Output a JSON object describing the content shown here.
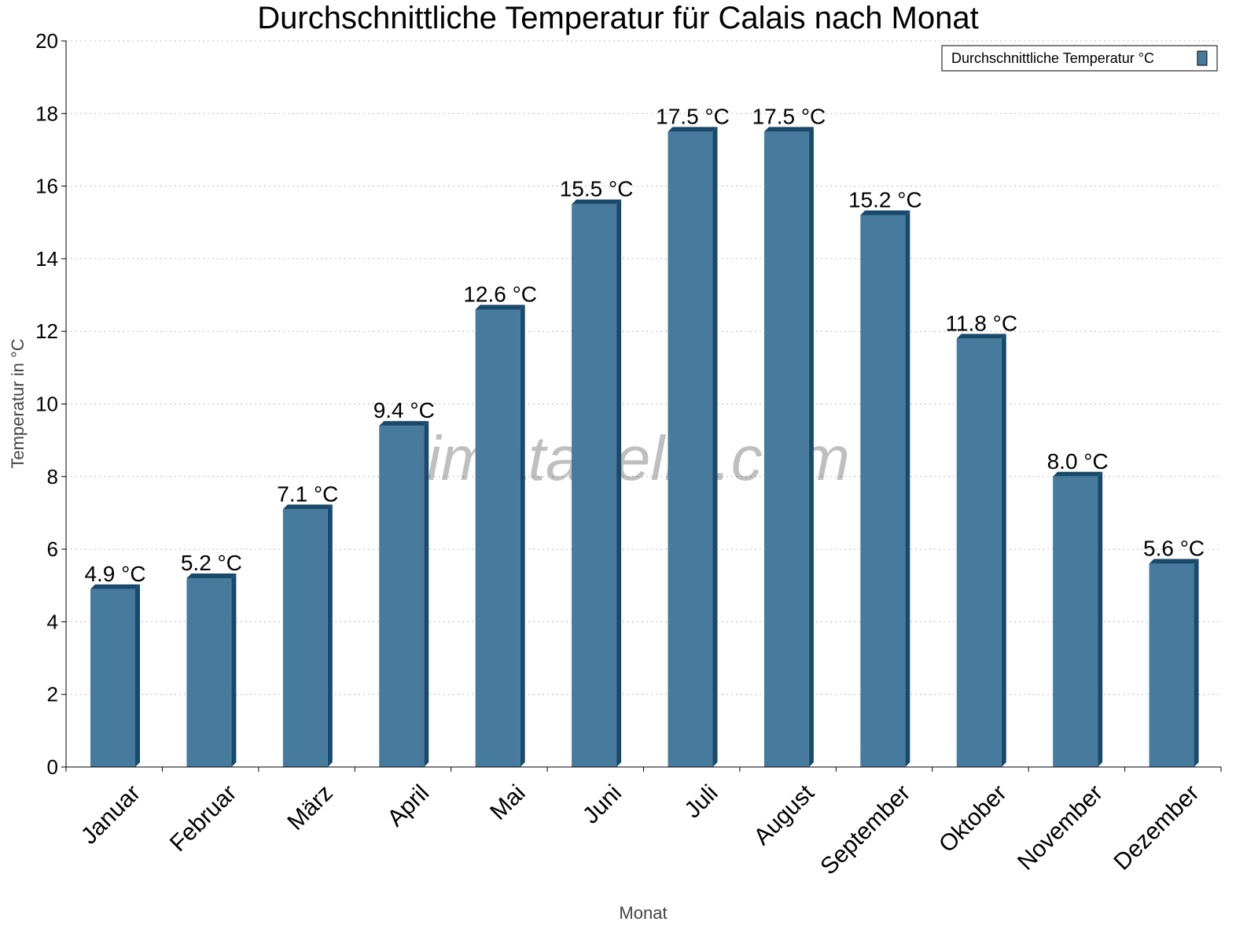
{
  "chart_data": {
    "type": "bar",
    "title": "Durchschnittliche Temperatur für Calais nach Monat",
    "xlabel": "Monat",
    "ylabel": "Temperatur in °C",
    "categories": [
      "Januar",
      "Februar",
      "März",
      "April",
      "Mai",
      "Juni",
      "Juli",
      "August",
      "September",
      "Oktober",
      "November",
      "Dezember"
    ],
    "series": [
      {
        "name": "Durchschnittliche Temperatur °C",
        "values": [
          4.9,
          5.2,
          7.1,
          9.4,
          12.6,
          15.5,
          17.5,
          17.5,
          15.2,
          11.8,
          8.0,
          5.6
        ],
        "data_labels": [
          "4.9 °C",
          "5.2 °C",
          "7.1 °C",
          "9.4 °C",
          "12.6 °C",
          "15.5 °C",
          "17.5 °C",
          "17.5 °C",
          "15.2 °C",
          "11.8 °C",
          "8.0 °C",
          "5.6 °C"
        ],
        "color": "#467b9d",
        "side_color": "#1a4a6b"
      }
    ],
    "ylim": [
      0,
      20
    ],
    "yticks": [
      "0",
      "2",
      "4",
      "6",
      "8",
      "10",
      "12",
      "14",
      "16",
      "18",
      "20"
    ],
    "grid": true,
    "legend_position": "top-right",
    "watermark": "klimatabelle.com"
  }
}
